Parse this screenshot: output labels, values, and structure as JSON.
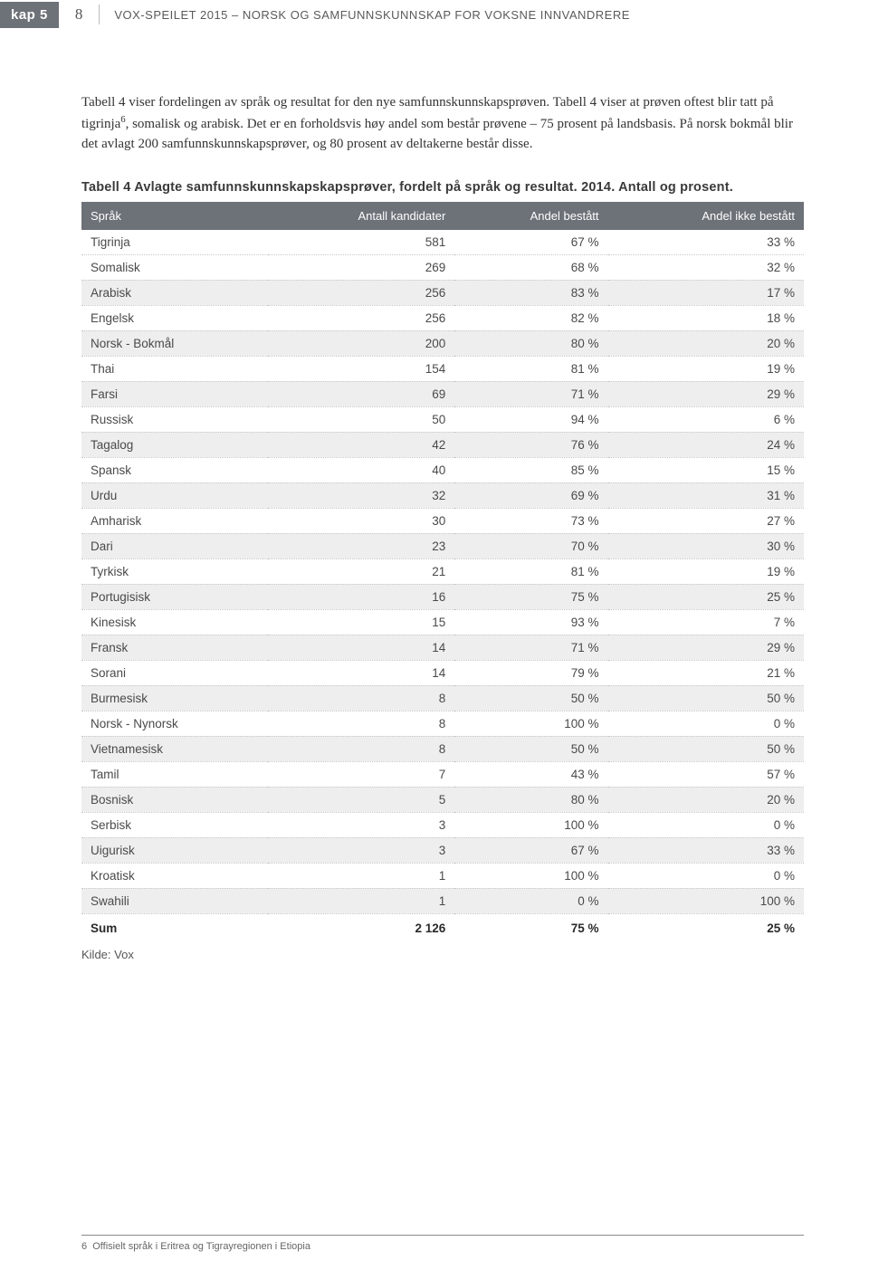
{
  "header": {
    "chapter": "kap 5",
    "page_number": "8",
    "doc_title": "VOX-SPEILET 2015 – NORSK OG SAMFUNNSKUNNSKAP FOR VOKSNE INNVANDRERE"
  },
  "paragraph": {
    "text_before_sup": "Tabell 4 viser fordelingen av språk og resultat for den nye samfunnskunnskapsprøven. Tabell 4 viser at prøven oftest blir tatt på tigrinja",
    "sup": "6",
    "text_after_sup": ", somalisk og arabisk. Det er en forholdsvis høy andel som består prøvene – 75 prosent på landsbasis. På norsk bokmål blir det avlagt 200 samfunnskunnskapsprøver, og 80 prosent av deltakerne består disse."
  },
  "table": {
    "title": "Tabell 4 Avlagte samfunnskunnskapskapsprøver, fordelt på språk og resultat. 2014. Antall og prosent.",
    "columns": [
      "Språk",
      "Antall kandidater",
      "Andel bestått",
      "Andel ikke bestått"
    ],
    "rows": [
      {
        "shaded": false,
        "c": [
          "Tigrinja",
          "581",
          "67 %",
          "33 %"
        ]
      },
      {
        "shaded": false,
        "c": [
          "Somalisk",
          "269",
          "68 %",
          "32 %"
        ]
      },
      {
        "shaded": true,
        "c": [
          "Arabisk",
          "256",
          "83 %",
          "17 %"
        ]
      },
      {
        "shaded": false,
        "c": [
          "Engelsk",
          "256",
          "82 %",
          "18 %"
        ]
      },
      {
        "shaded": true,
        "c": [
          "Norsk - Bokmål",
          "200",
          "80 %",
          "20 %"
        ]
      },
      {
        "shaded": false,
        "c": [
          "Thai",
          "154",
          "81 %",
          "19 %"
        ]
      },
      {
        "shaded": true,
        "c": [
          "Farsi",
          "69",
          "71 %",
          "29 %"
        ]
      },
      {
        "shaded": false,
        "c": [
          "Russisk",
          "50",
          "94 %",
          "6 %"
        ]
      },
      {
        "shaded": true,
        "c": [
          "Tagalog",
          "42",
          "76 %",
          "24 %"
        ]
      },
      {
        "shaded": false,
        "c": [
          "Spansk",
          "40",
          "85 %",
          "15 %"
        ]
      },
      {
        "shaded": true,
        "c": [
          "Urdu",
          "32",
          "69 %",
          "31 %"
        ]
      },
      {
        "shaded": false,
        "c": [
          "Amharisk",
          "30",
          "73 %",
          "27 %"
        ]
      },
      {
        "shaded": true,
        "c": [
          "Dari",
          "23",
          "70 %",
          "30 %"
        ]
      },
      {
        "shaded": false,
        "c": [
          "Tyrkisk",
          "21",
          "81 %",
          "19 %"
        ]
      },
      {
        "shaded": true,
        "c": [
          "Portugisisk",
          "16",
          "75 %",
          "25 %"
        ]
      },
      {
        "shaded": false,
        "c": [
          "Kinesisk",
          "15",
          "93 %",
          "7 %"
        ]
      },
      {
        "shaded": true,
        "c": [
          "Fransk",
          "14",
          "71 %",
          "29 %"
        ]
      },
      {
        "shaded": false,
        "c": [
          "Sorani",
          "14",
          "79 %",
          "21 %"
        ]
      },
      {
        "shaded": true,
        "c": [
          "Burmesisk",
          "8",
          "50 %",
          "50 %"
        ]
      },
      {
        "shaded": false,
        "c": [
          "Norsk - Nynorsk",
          "8",
          "100 %",
          "0 %"
        ]
      },
      {
        "shaded": true,
        "c": [
          "Vietnamesisk",
          "8",
          "50 %",
          "50 %"
        ]
      },
      {
        "shaded": false,
        "c": [
          "Tamil",
          "7",
          "43 %",
          "57 %"
        ]
      },
      {
        "shaded": true,
        "c": [
          "Bosnisk",
          "5",
          "80 %",
          "20 %"
        ]
      },
      {
        "shaded": false,
        "c": [
          "Serbisk",
          "3",
          "100 %",
          "0 %"
        ]
      },
      {
        "shaded": true,
        "c": [
          "Uigurisk",
          "3",
          "67 %",
          "33 %"
        ]
      },
      {
        "shaded": false,
        "c": [
          "Kroatisk",
          "1",
          "100 %",
          "0 %"
        ]
      },
      {
        "shaded": true,
        "c": [
          "Swahili",
          "1",
          "0 %",
          "100 %"
        ]
      }
    ],
    "sum": [
      "Sum",
      "2 126",
      "75 %",
      "25 %"
    ],
    "source": "Kilde: Vox"
  },
  "footnote": {
    "marker": "6",
    "text": "Offisielt språk i Eritrea og Tigrayregionen i Etiopia"
  },
  "colors": {
    "header_bg": "#6d7178",
    "shaded_row": "#eeeeee",
    "text": "#4a4a4a"
  }
}
